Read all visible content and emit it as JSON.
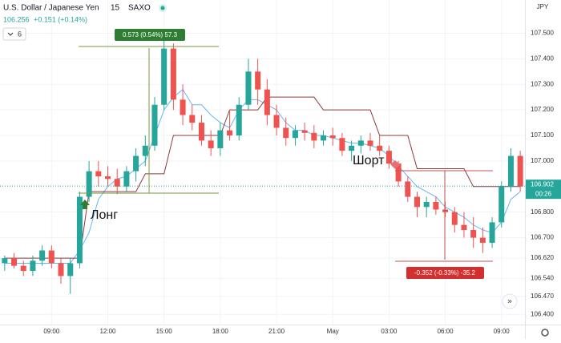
{
  "header": {
    "symbol": "U.S. Dollar / Japanese Yen",
    "interval": "15",
    "source": "SAXO",
    "price": "106.256",
    "change": "+0.151 (+0.14%)",
    "indicator_count": "6",
    "currency": "JPY",
    "countdown": "00:26"
  },
  "chart_data": {
    "type": "candlestick",
    "categories": [
      null,
      null,
      null,
      null,
      null,
      "09:00",
      null,
      null,
      null,
      null,
      null,
      "12:00",
      null,
      null,
      null,
      null,
      null,
      "15:00",
      null,
      null,
      null,
      null,
      null,
      "18:00",
      null,
      null,
      null,
      null,
      null,
      "21:00",
      null,
      null,
      null,
      null,
      null,
      "May",
      null,
      null,
      null,
      null,
      null,
      "03:00",
      null,
      null,
      null,
      null,
      null,
      "06:00",
      null,
      null,
      null,
      null,
      null,
      "09:00",
      null,
      null
    ],
    "open": [
      106.6,
      106.62,
      106.59,
      106.57,
      106.61,
      106.65,
      106.6,
      106.55,
      106.6,
      106.86,
      106.96,
      106.94,
      106.93,
      106.9,
      106.96,
      107.02,
      107.06,
      107.22,
      107.44,
      107.24,
      107.18,
      107.15,
      107.08,
      107.05,
      107.12,
      107.1,
      107.22,
      107.35,
      107.28,
      107.18,
      107.13,
      107.09,
      107.12,
      107.11,
      107.08,
      107.1,
      107.09,
      107.04,
      107.06,
      107.08,
      107.06,
      107.04,
      106.99,
      106.92,
      106.86,
      106.82,
      106.84,
      106.81,
      106.8,
      106.75,
      106.73,
      106.7,
      106.68,
      106.76,
      106.9,
      107.02
    ],
    "high": [
      106.63,
      106.64,
      106.61,
      106.63,
      106.67,
      106.67,
      106.62,
      106.62,
      106.88,
      107.0,
      107.0,
      106.98,
      106.97,
      106.98,
      107.05,
      107.1,
      107.25,
      107.48,
      107.46,
      107.3,
      107.22,
      107.18,
      107.12,
      107.15,
      107.2,
      107.25,
      107.4,
      107.4,
      107.32,
      107.22,
      107.17,
      107.14,
      107.15,
      107.14,
      107.12,
      107.13,
      107.11,
      107.08,
      107.1,
      107.11,
      107.1,
      107.06,
      107.0,
      106.94,
      106.88,
      106.86,
      106.86,
      106.84,
      106.82,
      106.8,
      106.78,
      106.74,
      106.78,
      106.92,
      107.05,
      107.04
    ],
    "low": [
      106.57,
      106.58,
      106.55,
      106.55,
      106.59,
      106.58,
      106.52,
      106.48,
      106.58,
      106.84,
      106.9,
      106.9,
      106.87,
      106.88,
      106.92,
      106.98,
      107.04,
      107.2,
      107.2,
      107.14,
      107.12,
      107.06,
      107.02,
      107.02,
      107.08,
      107.08,
      107.2,
      107.22,
      107.14,
      107.1,
      107.06,
      107.06,
      107.08,
      107.05,
      107.06,
      107.06,
      107.02,
      107.0,
      107.03,
      107.04,
      107.02,
      106.97,
      106.9,
      106.84,
      106.78,
      106.78,
      106.79,
      106.78,
      106.72,
      106.7,
      106.66,
      106.64,
      106.66,
      106.74,
      106.88,
      106.88
    ],
    "close": [
      106.62,
      106.59,
      106.57,
      106.61,
      106.65,
      106.6,
      106.55,
      106.6,
      106.86,
      106.96,
      106.94,
      106.93,
      106.9,
      106.96,
      107.02,
      107.06,
      107.22,
      107.44,
      107.24,
      107.18,
      107.15,
      107.08,
      107.05,
      107.12,
      107.1,
      107.22,
      107.35,
      107.28,
      107.18,
      107.13,
      107.09,
      107.12,
      107.11,
      107.08,
      107.1,
      107.09,
      107.04,
      107.06,
      107.08,
      107.06,
      107.04,
      106.99,
      106.92,
      106.86,
      106.82,
      106.84,
      106.81,
      106.8,
      106.75,
      106.73,
      106.7,
      106.68,
      106.76,
      106.9,
      107.02,
      106.9
    ],
    "up_color": "#26a69a",
    "down_color": "#ef5350",
    "lines": [
      {
        "color": "#64b5f6",
        "values": [
          106.6,
          106.6,
          106.6,
          106.6,
          106.6,
          106.6,
          106.6,
          106.6,
          106.65,
          106.72,
          106.85,
          106.9,
          106.93,
          106.94,
          106.97,
          107.0,
          107.1,
          107.2,
          107.25,
          107.28,
          107.22,
          107.22,
          107.18,
          107.15,
          107.13,
          107.2,
          107.24,
          107.24,
          107.22,
          107.2,
          107.15,
          107.12,
          107.12,
          107.1,
          107.1,
          107.09,
          107.08,
          107.07,
          107.07,
          107.06,
          107.05,
          107.02,
          106.98,
          106.94,
          106.9,
          106.88,
          106.86,
          106.82,
          106.8,
          106.78,
          106.75,
          106.73,
          106.72,
          106.76,
          106.85,
          106.88
        ]
      },
      {
        "color": "#8d3a3a",
        "values": [
          106.62,
          106.62,
          106.62,
          106.62,
          106.62,
          106.62,
          106.62,
          106.62,
          106.62,
          106.88,
          106.88,
          106.88,
          106.88,
          106.88,
          106.88,
          106.95,
          106.95,
          106.95,
          107.1,
          107.1,
          107.1,
          107.1,
          107.1,
          107.1,
          107.2,
          107.2,
          107.2,
          107.2,
          107.25,
          107.25,
          107.25,
          107.25,
          107.25,
          107.25,
          107.2,
          107.2,
          107.2,
          107.2,
          107.2,
          107.2,
          107.1,
          107.1,
          107.1,
          107.1,
          106.97,
          106.97,
          106.97,
          106.97,
          106.97,
          106.97,
          106.9,
          106.9,
          106.9,
          106.9,
          106.9,
          106.9
        ]
      }
    ],
    "ylim": [
      106.36,
      107.63
    ],
    "yticks": [
      {
        "value": 106.4,
        "label": "106.400"
      },
      {
        "value": 106.47,
        "label": "106.470"
      },
      {
        "value": 106.54,
        "label": "106.540"
      },
      {
        "value": 106.62,
        "label": "106.620"
      },
      {
        "value": 106.7,
        "label": "106.700"
      },
      {
        "value": 106.8,
        "label": "106.800"
      },
      {
        "value": 107,
        "label": "107.000"
      },
      {
        "value": 107.1,
        "label": "107.100"
      },
      {
        "value": 107.2,
        "label": "107.200"
      },
      {
        "value": 107.3,
        "label": "107.300"
      },
      {
        "value": 107.4,
        "label": "107.400"
      },
      {
        "value": 107.5,
        "label": "107.500"
      }
    ],
    "grid": true,
    "last_price": {
      "value": 106.902,
      "label": "106.902"
    },
    "annotations": {
      "long_measure": "0.573 (0.54%) 57.3",
      "short_measure": "-0.352 (-0.33%) -35.2",
      "long_label": "Лонг",
      "short_label": "Шорт"
    }
  }
}
